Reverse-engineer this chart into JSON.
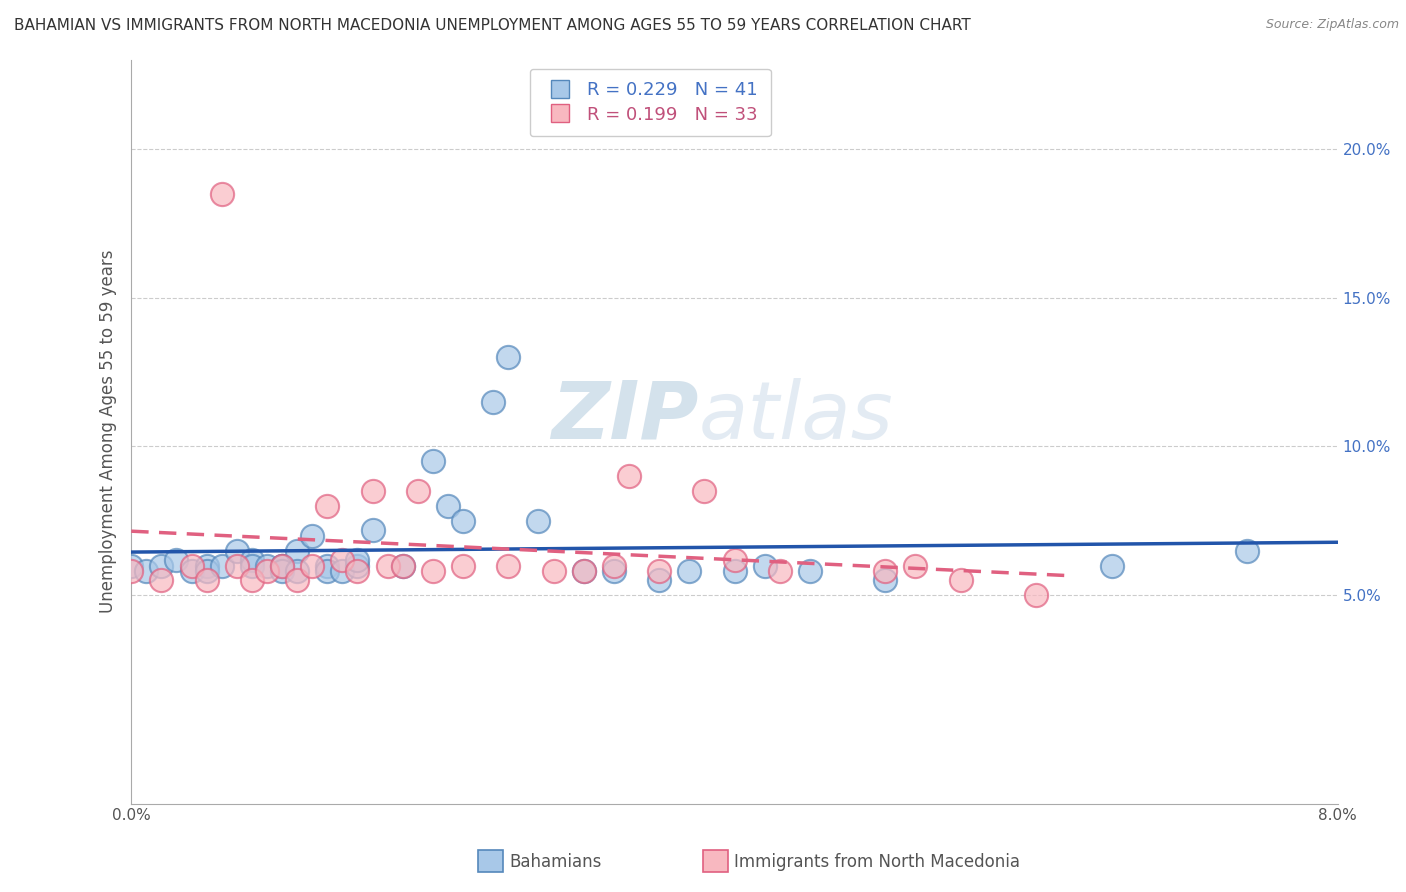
{
  "title": "BAHAMIAN VS IMMIGRANTS FROM NORTH MACEDONIA UNEMPLOYMENT AMONG AGES 55 TO 59 YEARS CORRELATION CHART",
  "source": "Source: ZipAtlas.com",
  "ylabel": "Unemployment Among Ages 55 to 59 years",
  "xlim": [
    0.0,
    0.08
  ],
  "ylim": [
    -0.02,
    0.23
  ],
  "xticks": [
    0.0,
    0.02,
    0.04,
    0.06,
    0.08
  ],
  "xtick_labels": [
    "0.0%",
    "",
    "",
    "",
    "8.0%"
  ],
  "yticks": [
    0.05,
    0.1,
    0.15,
    0.2
  ],
  "ytick_labels": [
    "5.0%",
    "10.0%",
    "15.0%",
    "20.0%"
  ],
  "blue_R": 0.229,
  "blue_N": 41,
  "pink_R": 0.199,
  "pink_N": 33,
  "blue_color": "#a8c8e8",
  "blue_edge_color": "#5588bb",
  "pink_color": "#f8b8c0",
  "pink_edge_color": "#e06080",
  "blue_line_color": "#2255aa",
  "pink_line_color": "#e06080",
  "blue_label": "Bahamians",
  "pink_label": "Immigrants from North Macedonia",
  "watermark": "ZIPAtlas",
  "blue_scatter_x": [
    0.0,
    0.001,
    0.002,
    0.003,
    0.004,
    0.005,
    0.005,
    0.006,
    0.007,
    0.008,
    0.008,
    0.009,
    0.01,
    0.01,
    0.01,
    0.011,
    0.011,
    0.012,
    0.013,
    0.013,
    0.014,
    0.015,
    0.015,
    0.016,
    0.018,
    0.02,
    0.021,
    0.022,
    0.024,
    0.025,
    0.027,
    0.03,
    0.032,
    0.035,
    0.037,
    0.04,
    0.042,
    0.045,
    0.05,
    0.065,
    0.074
  ],
  "blue_scatter_y": [
    0.06,
    0.058,
    0.06,
    0.062,
    0.058,
    0.06,
    0.058,
    0.06,
    0.065,
    0.062,
    0.06,
    0.06,
    0.06,
    0.06,
    0.058,
    0.065,
    0.058,
    0.07,
    0.06,
    0.058,
    0.058,
    0.06,
    0.062,
    0.072,
    0.06,
    0.095,
    0.08,
    0.075,
    0.115,
    0.13,
    0.075,
    0.058,
    0.058,
    0.055,
    0.058,
    0.058,
    0.06,
    0.058,
    0.055,
    0.06,
    0.065
  ],
  "pink_scatter_x": [
    0.0,
    0.002,
    0.004,
    0.005,
    0.006,
    0.007,
    0.008,
    0.009,
    0.01,
    0.011,
    0.012,
    0.013,
    0.014,
    0.015,
    0.016,
    0.017,
    0.018,
    0.019,
    0.02,
    0.022,
    0.025,
    0.028,
    0.03,
    0.032,
    0.033,
    0.035,
    0.038,
    0.04,
    0.043,
    0.05,
    0.052,
    0.055,
    0.06
  ],
  "pink_scatter_y": [
    0.058,
    0.055,
    0.06,
    0.055,
    0.185,
    0.06,
    0.055,
    0.058,
    0.06,
    0.055,
    0.06,
    0.08,
    0.062,
    0.058,
    0.085,
    0.06,
    0.06,
    0.085,
    0.058,
    0.06,
    0.06,
    0.058,
    0.058,
    0.06,
    0.09,
    0.058,
    0.085,
    0.062,
    0.058,
    0.058,
    0.06,
    0.055,
    0.05
  ],
  "grid_color": "#cccccc",
  "background_color": "#ffffff"
}
